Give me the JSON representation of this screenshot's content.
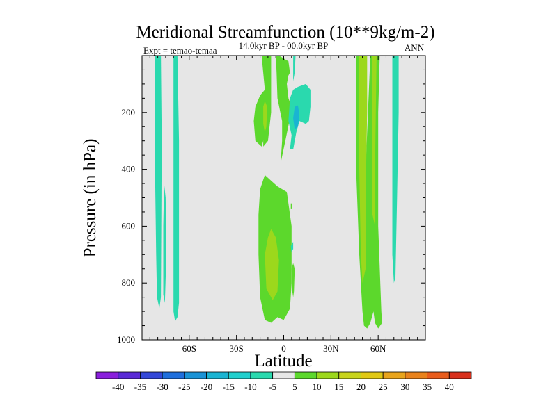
{
  "chart_data": {
    "type": "heatmap",
    "title": "Meridional Streamfunction (10**9kg/m-2)",
    "subtitle": "14.0kyr BP - 00.0kyr BP",
    "left_annotation": "Expt = temao-temaa",
    "right_annotation": "ANN",
    "xlabel": "Latitude",
    "ylabel": "Pressure (in hPa)",
    "xlim": [
      -90,
      90
    ],
    "ylim": [
      1000,
      0
    ],
    "x_ticks": [
      {
        "value": -60,
        "label": "60S"
      },
      {
        "value": -30,
        "label": "30S"
      },
      {
        "value": 0,
        "label": "0"
      },
      {
        "value": 30,
        "label": "30N"
      },
      {
        "value": 60,
        "label": "60N"
      }
    ],
    "y_ticks": [
      {
        "value": 200,
        "label": "200"
      },
      {
        "value": 400,
        "label": "400"
      },
      {
        "value": 600,
        "label": "600"
      },
      {
        "value": 800,
        "label": "800"
      },
      {
        "value": 1000,
        "label": "1000"
      }
    ],
    "background_color": "#e6e6e6",
    "colorbar": {
      "levels": [
        -40,
        -35,
        -30,
        -25,
        -20,
        -15,
        -10,
        -5,
        5,
        10,
        15,
        20,
        25,
        30,
        35,
        40
      ],
      "labels": [
        "-40",
        "-35",
        "-30",
        "-25",
        "-20",
        "-15",
        "-10",
        "-5",
        "5",
        "10",
        "15",
        "20",
        "25",
        "30",
        "35",
        "40"
      ],
      "colors": [
        "#8a1fdc",
        "#5a2ad6",
        "#3448d8",
        "#1f6fdc",
        "#1a93d6",
        "#1ab4d2",
        "#20cfcc",
        "#2ad9ae",
        "#e6e6e6",
        "#5cd82c",
        "#9cd81c",
        "#c8d41c",
        "#e0c814",
        "#e8a41c",
        "#e8821c",
        "#e85c1c",
        "#d8301c"
      ]
    },
    "regions": [
      {
        "color": "#2ad9ae",
        "label": "-10 to -5",
        "points": [
          [
            -82,
            0
          ],
          [
            -78,
            0
          ],
          [
            -77.5,
            300
          ],
          [
            -78,
            850
          ],
          [
            -79,
            890
          ],
          [
            -80.5,
            850
          ],
          [
            -81,
            700
          ],
          [
            -82,
            300
          ]
        ]
      },
      {
        "color": "#2ad9ae",
        "label": "-10 to -5",
        "points": [
          [
            -76,
            450
          ],
          [
            -75,
            500
          ],
          [
            -74.5,
            700
          ],
          [
            -75.5,
            870
          ],
          [
            -76.5,
            840
          ],
          [
            -76.5,
            600
          ]
        ]
      },
      {
        "color": "#2ad9ae",
        "label": "-10 to -5",
        "points": [
          [
            -70,
            0
          ],
          [
            -67.5,
            0
          ],
          [
            -66.5,
            300
          ],
          [
            -66.5,
            870
          ],
          [
            -67.5,
            920
          ],
          [
            -69,
            935
          ],
          [
            -70,
            900
          ],
          [
            -70,
            300
          ]
        ]
      },
      {
        "color": "#5cd82c",
        "label": "5 to 10",
        "points": [
          [
            -14,
            0
          ],
          [
            -12,
            0
          ],
          [
            -12,
            250
          ],
          [
            -13,
            300
          ],
          [
            -13,
            320
          ],
          [
            -10,
            300
          ],
          [
            -8,
            200
          ],
          [
            -8,
            50
          ],
          [
            -8,
            0
          ],
          [
            -5,
            0
          ],
          [
            -4.5,
            60
          ],
          [
            -4,
            150
          ],
          [
            -1,
            230
          ],
          [
            -1,
            300
          ],
          [
            -2,
            380
          ],
          [
            1,
            300
          ],
          [
            4,
            220
          ],
          [
            5,
            180
          ],
          [
            3,
            150
          ],
          [
            2,
            100
          ],
          [
            3,
            70
          ],
          [
            4,
            60
          ],
          [
            3,
            20
          ],
          [
            -3,
            0
          ],
          [
            -14,
            0
          ]
        ]
      },
      {
        "color": "#5cd82c",
        "label": "5 to 10",
        "points": [
          [
            -14,
            0
          ],
          [
            -12,
            0
          ],
          [
            -12,
            120
          ],
          [
            -15,
            140
          ],
          [
            -18,
            180
          ],
          [
            -19,
            230
          ],
          [
            -18,
            300
          ],
          [
            -14,
            320
          ],
          [
            -12,
            280
          ],
          [
            -10,
            240
          ],
          [
            -9,
            180
          ],
          [
            -10,
            140
          ],
          [
            -12,
            120
          ]
        ]
      },
      {
        "color": "#5cd82c",
        "label": "5 to 10",
        "points": [
          [
            -12,
            420
          ],
          [
            -15,
            470
          ],
          [
            -16,
            560
          ],
          [
            -16,
            700
          ],
          [
            -15,
            850
          ],
          [
            -12,
            930
          ],
          [
            -8,
            940
          ],
          [
            -4,
            920
          ],
          [
            0,
            930
          ],
          [
            4,
            890
          ],
          [
            5,
            800
          ],
          [
            5,
            600
          ],
          [
            2,
            480
          ],
          [
            -4,
            460
          ],
          [
            -8,
            440
          ]
        ]
      },
      {
        "color": "#5cd82c",
        "label": "5 to 10",
        "points": [
          [
            5,
            750
          ],
          [
            6,
            730
          ],
          [
            7,
            750
          ],
          [
            6.5,
            830
          ],
          [
            6,
            850
          ],
          [
            5.5,
            830
          ]
        ]
      },
      {
        "color": "#2ad9ae",
        "label": "-10 to -5",
        "points": [
          [
            6,
            0
          ],
          [
            7.5,
            0
          ],
          [
            7,
            60
          ],
          [
            6,
            90
          ],
          [
            6,
            60
          ]
        ]
      },
      {
        "color": "#2ad9ae",
        "label": "-10 to -5",
        "points": [
          [
            4,
            150
          ],
          [
            6,
            120
          ],
          [
            9,
            110
          ],
          [
            14,
            100
          ],
          [
            17,
            120
          ],
          [
            17,
            180
          ],
          [
            16,
            230
          ],
          [
            14,
            240
          ],
          [
            10,
            230
          ],
          [
            8,
            270
          ],
          [
            6,
            330
          ],
          [
            4,
            330
          ],
          [
            5,
            280
          ],
          [
            3,
            230
          ]
        ]
      },
      {
        "color": "#2ad9ae",
        "label": "-10 to -5",
        "points": [
          [
            4.5,
            670
          ],
          [
            6,
            655
          ],
          [
            6,
            680
          ],
          [
            4.8,
            690
          ]
        ]
      },
      {
        "color": "#5cd82c",
        "label": "5 to 10",
        "points": [
          [
            4.5,
            520
          ],
          [
            5.5,
            520
          ],
          [
            5.5,
            540
          ],
          [
            4.5,
            540
          ]
        ]
      },
      {
        "color": "#5cd82c",
        "label": "5 to 10",
        "points": [
          [
            46,
            0
          ],
          [
            50,
            0
          ],
          [
            50,
            300
          ],
          [
            52,
            400
          ],
          [
            55,
            0
          ],
          [
            61,
            0
          ],
          [
            60,
            200
          ],
          [
            60,
            600
          ],
          [
            62,
            900
          ],
          [
            62.5,
            940
          ],
          [
            60,
            960
          ],
          [
            58,
            940
          ],
          [
            57,
            900
          ],
          [
            55,
            940
          ],
          [
            53,
            960
          ],
          [
            51,
            950
          ],
          [
            50,
            900
          ],
          [
            48,
            700
          ],
          [
            46,
            400
          ],
          [
            46,
            100
          ]
        ]
      },
      {
        "color": "#2ad9ae",
        "label": "-10 to -5",
        "points": [
          [
            69,
            0
          ],
          [
            73,
            0
          ],
          [
            73,
            200
          ],
          [
            72,
            500
          ],
          [
            71,
            780
          ],
          [
            70,
            800
          ],
          [
            69,
            700
          ],
          [
            69,
            300
          ]
        ]
      }
    ],
    "inner_regions": [
      {
        "color": "#9cd81c",
        "label": "10 to 15",
        "points": [
          [
            -13,
            180
          ],
          [
            -12,
            160
          ],
          [
            -10.5,
            180
          ],
          [
            -11,
            250
          ],
          [
            -12,
            270
          ],
          [
            -13,
            240
          ]
        ]
      },
      {
        "color": "#9cd81c",
        "label": "10 to 15",
        "points": [
          [
            -10,
            640
          ],
          [
            -12,
            700
          ],
          [
            -11,
            820
          ],
          [
            -7,
            860
          ],
          [
            -4,
            830
          ],
          [
            -3,
            720
          ],
          [
            -5,
            640
          ],
          [
            -8,
            610
          ]
        ]
      },
      {
        "color": "#9cd81c",
        "label": "10 to 15",
        "points": [
          [
            48,
            0
          ],
          [
            53,
            0
          ],
          [
            53,
            200
          ],
          [
            52,
            500
          ],
          [
            52,
            750
          ],
          [
            50,
            800
          ],
          [
            49,
            700
          ],
          [
            48,
            400
          ]
        ]
      },
      {
        "color": "#9cd81c",
        "label": "10 to 15",
        "points": [
          [
            56,
            0
          ],
          [
            59,
            0
          ],
          [
            58,
            400
          ],
          [
            58,
            600
          ],
          [
            56,
            550
          ],
          [
            56,
            300
          ]
        ]
      },
      {
        "color": "#1ab4d2",
        "label": "-15 to -10",
        "points": [
          [
            7,
            180
          ],
          [
            9,
            175
          ],
          [
            10,
            210
          ],
          [
            9,
            250
          ],
          [
            7,
            260
          ],
          [
            6,
            220
          ]
        ]
      }
    ]
  }
}
